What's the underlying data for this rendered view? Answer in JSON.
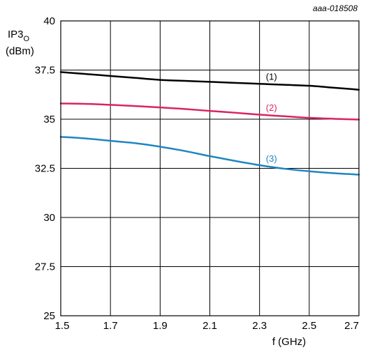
{
  "figure_id": "aaa-018508",
  "chart_data": {
    "type": "line",
    "ylabel": "IP3",
    "ylabel_sub": "O",
    "yunit": "(dBm)",
    "xlabel": "f (GHz)",
    "xlim": [
      1.5,
      2.7
    ],
    "ylim": [
      25,
      40
    ],
    "xticks": [
      "1.5",
      "1.7",
      "1.9",
      "2.1",
      "2.3",
      "2.5",
      "2.7"
    ],
    "yticks": [
      "25",
      "27.5",
      "30",
      "32.5",
      "35",
      "37.5",
      "40"
    ],
    "grid": true,
    "series": [
      {
        "name": "(1)",
        "color": "#000000",
        "x": [
          1.5,
          1.6,
          1.7,
          1.8,
          1.9,
          2.0,
          2.1,
          2.2,
          2.3,
          2.4,
          2.5,
          2.6,
          2.7
        ],
        "y": [
          37.4,
          37.3,
          37.2,
          37.1,
          37.0,
          36.95,
          36.9,
          36.85,
          36.8,
          36.75,
          36.7,
          36.6,
          36.5
        ]
      },
      {
        "name": "(2)",
        "color": "#d9245f",
        "x": [
          1.5,
          1.6,
          1.7,
          1.8,
          1.9,
          2.0,
          2.1,
          2.2,
          2.3,
          2.4,
          2.5,
          2.6,
          2.7
        ],
        "y": [
          35.8,
          35.78,
          35.73,
          35.67,
          35.6,
          35.52,
          35.42,
          35.33,
          35.23,
          35.15,
          35.07,
          35.02,
          34.98
        ]
      },
      {
        "name": "(3)",
        "color": "#1f86bf",
        "x": [
          1.5,
          1.6,
          1.7,
          1.8,
          1.9,
          2.0,
          2.1,
          2.2,
          2.3,
          2.4,
          2.5,
          2.6,
          2.7
        ],
        "y": [
          34.1,
          34.02,
          33.9,
          33.78,
          33.6,
          33.38,
          33.12,
          32.88,
          32.66,
          32.48,
          32.35,
          32.25,
          32.18
        ]
      }
    ],
    "series_label_anchor_x": [
      2.32,
      2.32,
      2.32
    ]
  }
}
